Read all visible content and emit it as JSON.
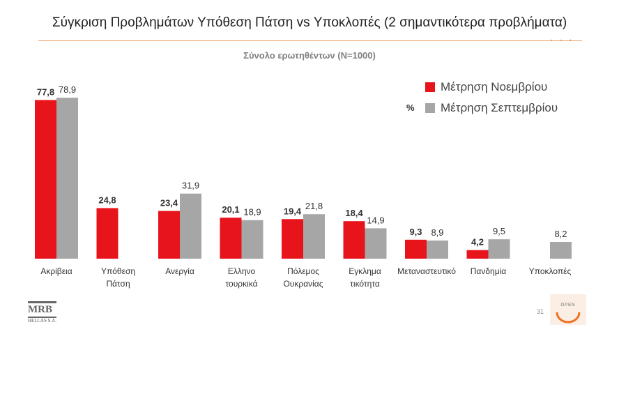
{
  "header": {
    "title": "Σύγκριση Προβλημάτων Υπόθεση Πάτση vs Υποκλοπές (2 σημαντικότερα προβλήματα)",
    "dots": ". . ."
  },
  "footer": {
    "page_number": "31",
    "mrb_logo": "MRB",
    "mrb_sub": "HELLAS S.A.",
    "open_logo": "OPEN"
  },
  "colors": {
    "november": "#e8141b",
    "september": "#a6a6a6"
  },
  "chart_data": {
    "type": "bar",
    "subtitle": "Σύνολο ερωτηθέντων (N=1000)",
    "unit": "%",
    "categories": [
      [
        "Ακρίβεια"
      ],
      [
        "Υπόθεση",
        "Πάτση"
      ],
      [
        "Ανεργία"
      ],
      [
        "Ελληνο",
        "τουρκικά"
      ],
      [
        "Πόλεμος",
        "Ουκρανίας"
      ],
      [
        "Εγκλημα",
        "τικότητα"
      ],
      [
        "Μεταναστευτικό"
      ],
      [
        "Πανδημία"
      ],
      [
        "Υποκλοπές"
      ]
    ],
    "series": [
      {
        "name": "Μέτρηση Νοεμβρίου",
        "values": [
          77.8,
          24.8,
          23.4,
          20.1,
          19.4,
          18.4,
          9.3,
          4.2,
          null
        ],
        "labels": [
          "77,8",
          "24,8",
          "23,4",
          "20,1",
          "19,4",
          "18,4",
          "9,3",
          "4,2",
          ""
        ]
      },
      {
        "name": "Μέτρηση Σεπτεμβρίου",
        "values": [
          78.9,
          null,
          31.9,
          18.9,
          21.8,
          14.9,
          8.9,
          9.5,
          8.2
        ],
        "labels": [
          "78,9",
          "",
          "31,9",
          "18,9",
          "21,8",
          "14,9",
          "8,9",
          "9,5",
          "8,2"
        ]
      }
    ],
    "ylim": [
      0,
      80
    ],
    "legend": "top-right"
  }
}
